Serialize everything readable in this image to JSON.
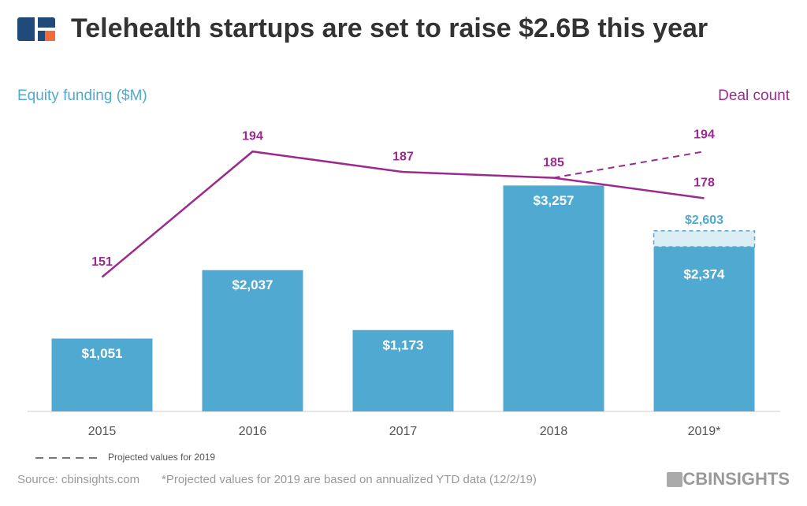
{
  "chart_data": {
    "type": "bar_line",
    "title": "Telehealth startups are set to raise $2.6B this year",
    "categories": [
      "2015",
      "2016",
      "2017",
      "2018",
      "2019*"
    ],
    "series": [
      {
        "name": "Equity funding ($M)",
        "type": "bar",
        "color": "#4fa9d0",
        "values": [
          1051,
          2037,
          1173,
          3257,
          2374
        ],
        "value_labels": [
          "$1,051",
          "$2,037",
          "$1,173",
          "$3,257",
          "$2,374"
        ],
        "projected_values": [
          null,
          null,
          null,
          null,
          2603
        ],
        "projected_value_labels": [
          null,
          null,
          null,
          null,
          "$2,603"
        ]
      },
      {
        "name": "Deal count",
        "type": "line",
        "axis": "y2",
        "color": "#9b2a8e",
        "values": [
          151,
          194,
          187,
          185,
          178
        ],
        "projected_values": [
          null,
          null,
          null,
          null,
          194
        ]
      }
    ],
    "ylim": [
      0,
      4000
    ],
    "y2lim": [
      105,
      200
    ],
    "legend": "Projected values for 2019",
    "source": "Source: cbinsights.com",
    "note": "*Projected values for 2019 are based on annualized YTD data (12/2/19)",
    "brand": "CBINSIGHTS"
  }
}
